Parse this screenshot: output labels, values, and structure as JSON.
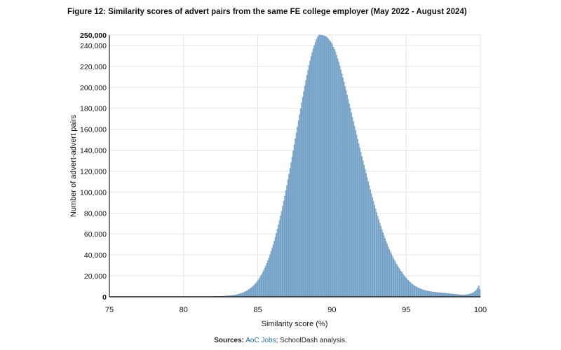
{
  "figure": {
    "title": "Figure 12: Similarity scores of advert pairs from the same FE college employer (May 2022 - August 2024)"
  },
  "source": {
    "prefix": "Sources:",
    "link_text": "AoC Jobs",
    "suffix": "; SchoolDash analysis."
  },
  "colors": {
    "bar_fill": "#8fb4d3",
    "bar_stroke": "#4f87b6",
    "grid": "#e3e3e3"
  },
  "chart_data": {
    "type": "bar",
    "title": "Figure 12: Similarity scores of advert pairs from the same FE college employer (May 2022 - August 2024)",
    "xlabel": "Similarity score (%)",
    "ylabel": "Number of advert-advert pairs",
    "xlim": [
      75,
      100
    ],
    "ylim": [
      0,
      250000
    ],
    "x_ticks": [
      75,
      80,
      85,
      90,
      95,
      100
    ],
    "y_ticks": [
      0,
      20000,
      40000,
      60000,
      80000,
      100000,
      120000,
      140000,
      160000,
      180000,
      200000,
      220000,
      240000,
      250000
    ],
    "y_tick_labels": [
      "0",
      "20,000",
      "40,000",
      "60,000",
      "80,000",
      "100,000",
      "120,000",
      "140,000",
      "160,000",
      "180,000",
      "200,000",
      "220,000",
      "240,000",
      "250,000"
    ],
    "x_tick_labels": [
      "75",
      "80",
      "85",
      "90",
      "95",
      "100"
    ],
    "grid": true,
    "bin_width": 0.1,
    "bin_start": 75.0,
    "values": [
      300,
      300,
      300,
      300,
      300,
      300,
      300,
      300,
      300,
      300,
      300,
      300,
      300,
      300,
      300,
      300,
      300,
      300,
      300,
      300,
      300,
      300,
      300,
      300,
      300,
      300,
      300,
      300,
      300,
      300,
      300,
      300,
      300,
      300,
      300,
      300,
      300,
      300,
      300,
      300,
      300,
      300,
      300,
      300,
      300,
      300,
      300,
      300,
      300,
      300,
      300,
      300,
      300,
      300,
      300,
      300,
      300,
      300,
      300,
      300,
      300,
      300,
      300,
      300,
      300,
      300,
      300,
      300,
      300,
      300,
      300,
      300,
      300,
      300,
      300,
      300,
      300,
      300,
      300,
      300,
      300,
      300,
      300,
      300,
      300,
      300,
      300,
      300,
      300,
      300,
      300,
      300,
      300,
      300,
      300,
      300,
      300,
      400,
      400,
      400,
      400,
      400,
      400,
      500,
      500,
      500,
      600,
      600,
      600,
      700,
      800,
      800,
      900,
      1000,
      1100,
      1200,
      1300,
      1500,
      1600,
      1800,
      2000,
      2300,
      2500,
      2800,
      3100,
      3400,
      3800,
      4200,
      4700,
      5200,
      5700,
      6300,
      7000,
      7700,
      8500,
      9300,
      10300,
      11300,
      12400,
      13600,
      14900,
      16300,
      17800,
      19500,
      21200,
      23100,
      25100,
      27300,
      29600,
      32000,
      34600,
      37300,
      40200,
      43200,
      46400,
      49700,
      53200,
      56900,
      60700,
      64600,
      68700,
      73000,
      77400,
      81900,
      86600,
      91400,
      96300,
      101400,
      106500,
      111800,
      117100,
      122600,
      128100,
      133700,
      139400,
      145100,
      150900,
      156600,
      162400,
      168200,
      173900,
      179600,
      185200,
      190700,
      196100,
      201400,
      206600,
      211500,
      216300,
      220900,
      225300,
      229500,
      233300,
      236900,
      240100,
      243000,
      245500,
      247700,
      249400,
      250000,
      250000,
      249700,
      249500,
      249300,
      248800,
      248500,
      247700,
      246500,
      245200,
      244000,
      242600,
      240900,
      238500,
      236400,
      233700,
      230600,
      227500,
      224200,
      220600,
      216900,
      213100,
      209200,
      205200,
      201100,
      197000,
      192800,
      188600,
      184400,
      180100,
      175900,
      171600,
      167400,
      163100,
      158900,
      154700,
      150500,
      146300,
      142200,
      138100,
      134000,
      129900,
      125900,
      121900,
      117900,
      113900,
      110000,
      106100,
      102300,
      98500,
      94800,
      91100,
      87500,
      84000,
      80500,
      77100,
      73800,
      70500,
      67400,
      64300,
      61300,
      58400,
      55600,
      52900,
      50300,
      47800,
      45400,
      43100,
      40900,
      38800,
      36800,
      34900,
      33000,
      31200,
      29500,
      27800,
      26200,
      24700,
      23200,
      21800,
      20400,
      19100,
      17900,
      16800,
      15800,
      14800,
      13800,
      12900,
      12100,
      11300,
      10600,
      10000,
      9400,
      8800,
      8300,
      7800,
      7400,
      7000,
      6700,
      6400,
      6100,
      5900,
      5600,
      5400,
      5200,
      5000,
      4800,
      4700,
      4500,
      4400,
      4300,
      4200,
      4100,
      4000,
      3900,
      3800,
      3700,
      3600,
      3500,
      3400,
      3300,
      3200,
      3100,
      3000,
      2900,
      2800,
      2700,
      2600,
      2500,
      2400,
      2300,
      2200,
      2100,
      2000,
      1900,
      1800,
      1800,
      1800,
      1900,
      2000,
      2100,
      2300,
      2500,
      2800,
      3200,
      3600,
      4100,
      4800,
      5600,
      6800,
      8400,
      10600,
      7000
    ]
  }
}
